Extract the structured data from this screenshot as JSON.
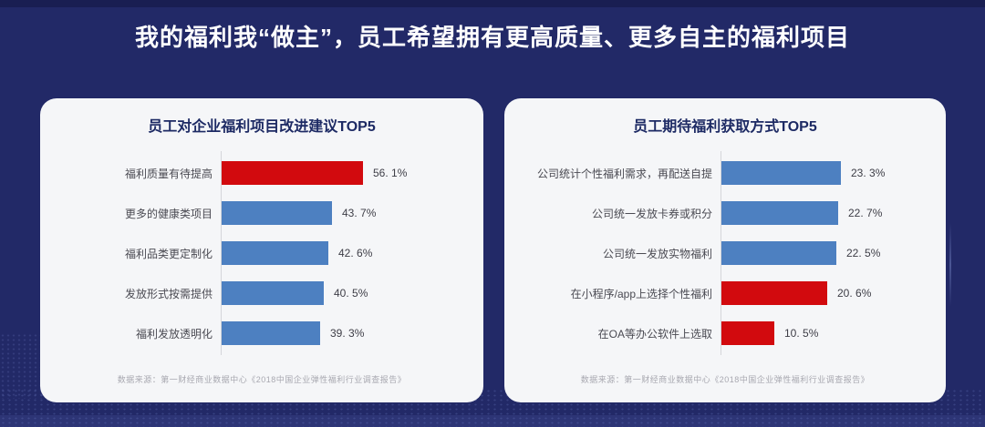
{
  "header": {
    "title": "我的福利我“做主”，员工希望拥有更高质量、更多自主的福利项目"
  },
  "colors": {
    "background": "#222967",
    "card_background": "#f5f6f8",
    "headline_text": "#ffffff",
    "card_title_text": "#1d2a64",
    "bar_blue": "#4d80c1",
    "bar_red": "#d20a0e"
  },
  "chart_data": [
    {
      "type": "bar",
      "orientation": "horizontal",
      "title": "员工对企业福利项目改进建议TOP5",
      "categories": [
        "福利质量有待提高",
        "更多的健康类项目",
        "福利品类更定制化",
        "发放形式按需提供",
        "福利发放透明化"
      ],
      "values": [
        56.1,
        43.7,
        42.6,
        40.5,
        39.3
      ],
      "value_labels": [
        "56. 1%",
        "43. 7%",
        "42. 6%",
        "40. 5%",
        "39. 3%"
      ],
      "bar_colors": [
        "red",
        "blue",
        "blue",
        "blue",
        "blue"
      ],
      "unit": "%",
      "xlim": [
        0,
        60
      ],
      "grid": false,
      "value_label_position": "end",
      "source": "数据来源：第一财经商业数据中心《2018中国企业弹性福利行业调查报告》"
    },
    {
      "type": "bar",
      "orientation": "horizontal",
      "title": "员工期待福利获取方式TOP5",
      "categories": [
        "公司统计个性福利需求，再配送自提",
        "公司统一发放卡券或积分",
        "公司统一发放实物福利",
        "在小程序/app上选择个性福利",
        "在OA等办公软件上选取"
      ],
      "values": [
        23.3,
        22.7,
        22.5,
        20.6,
        10.5
      ],
      "value_labels": [
        "23. 3%",
        "22. 7%",
        "22. 5%",
        "20. 6%",
        "10. 5%"
      ],
      "bar_colors": [
        "blue",
        "blue",
        "blue",
        "red",
        "red"
      ],
      "unit": "%",
      "xlim": [
        0,
        25
      ],
      "grid": false,
      "value_label_position": "end",
      "source": "数据来源：第一财经商业数据中心《2018中国企业弹性福利行业调查报告》"
    }
  ]
}
